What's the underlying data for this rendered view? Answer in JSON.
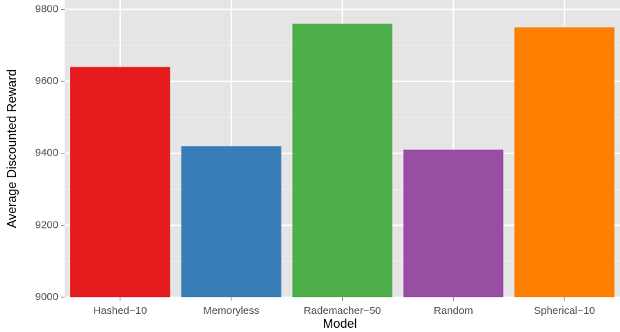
{
  "chart_data": {
    "type": "bar",
    "x_label": "Model",
    "y_label": "Average Discounted Reward",
    "categories": [
      "Hashed−10",
      "Memoryless",
      "Rademacher−50",
      "Random",
      "Spherical−10"
    ],
    "values": [
      9640,
      9420,
      9760,
      9410,
      9750
    ],
    "colors": [
      "#e41a1c",
      "#377eb8",
      "#4daf4a",
      "#984ea3",
      "#ff7f00"
    ],
    "ylim": [
      9000,
      9826
    ],
    "yticks": [
      9000,
      9200,
      9400,
      9600,
      9800
    ],
    "grid": true
  }
}
